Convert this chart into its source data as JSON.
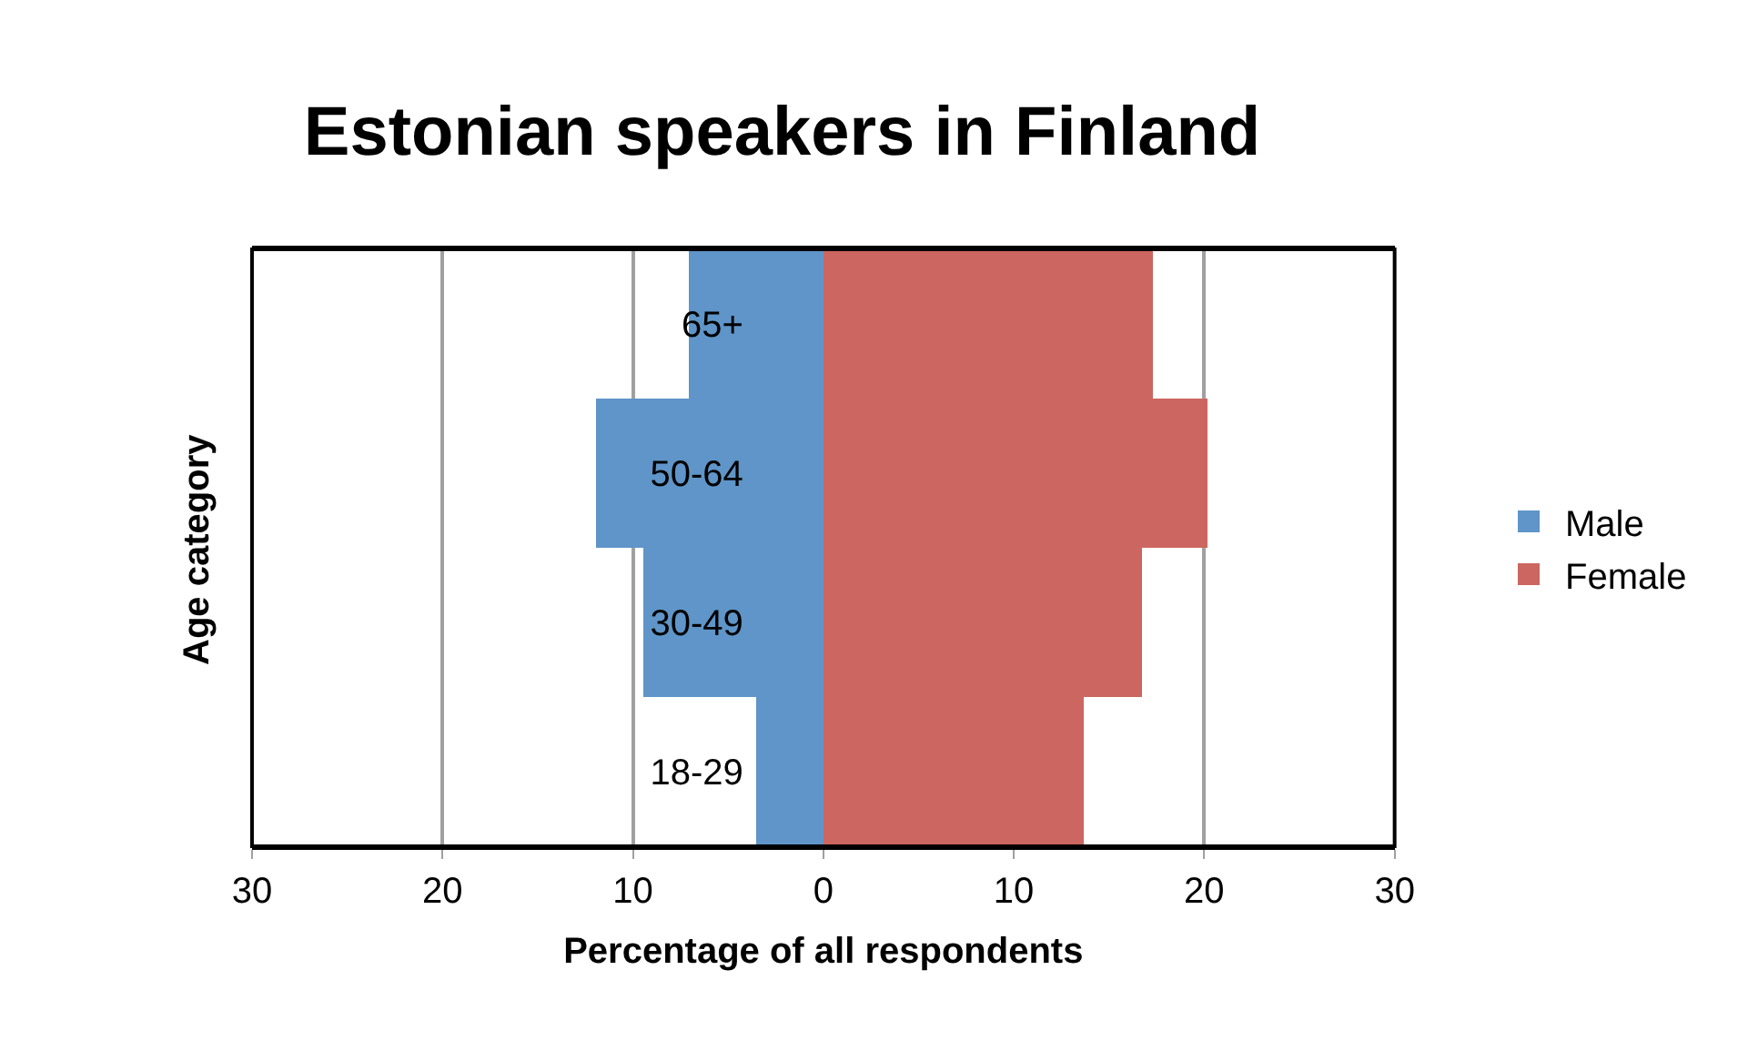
{
  "chart_data": {
    "type": "bar",
    "orientation": "horizontal",
    "title": "Estonian speakers in Finland",
    "xlabel": "Percentage of all respondents",
    "ylabel": "Age category",
    "categories": [
      "65+",
      "50-64",
      "30-49",
      "18-29"
    ],
    "series": [
      {
        "name": "Male",
        "color": "#5f95c8",
        "values": [
          -7.1,
          -11.9,
          -9.5,
          -3.5
        ]
      },
      {
        "name": "Female",
        "color": "#cc6660",
        "values": [
          17.3,
          20.2,
          16.7,
          13.7
        ]
      }
    ],
    "xlim": [
      -30,
      30
    ],
    "xticks": [
      {
        "value": -30,
        "label": "30"
      },
      {
        "value": -20,
        "label": "20"
      },
      {
        "value": -10,
        "label": "10"
      },
      0,
      10,
      20,
      30
    ],
    "grid": "x",
    "legend": "right",
    "stacked": true
  }
}
